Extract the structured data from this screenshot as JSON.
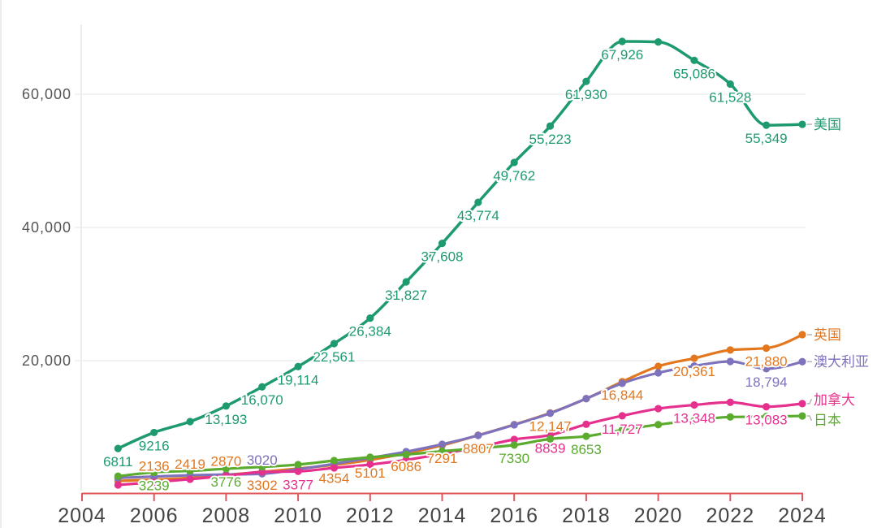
{
  "chart_data": {
    "type": "line",
    "title": "",
    "xlabel": "",
    "ylabel": "",
    "x": [
      2005,
      2006,
      2007,
      2008,
      2009,
      2010,
      2011,
      2012,
      2013,
      2014,
      2015,
      2016,
      2017,
      2018,
      2019,
      2020,
      2021,
      2022,
      2023,
      2024
    ],
    "xlim": [
      2004,
      2024
    ],
    "ylim": [
      0,
      70000
    ],
    "xticks": [
      2004,
      2006,
      2008,
      2010,
      2012,
      2014,
      2016,
      2018,
      2020,
      2022,
      2024
    ],
    "xtick_labels": [
      "2004",
      "2006",
      "2008",
      "2010",
      "2012",
      "2014",
      "2016",
      "2018",
      "2020",
      "2022",
      "2024"
    ],
    "yticks": [
      20000,
      40000,
      60000
    ],
    "ytick_labels": [
      "20,000",
      "40,000",
      "60,000"
    ],
    "grid": {
      "y": true,
      "x": false
    },
    "legend": "inline labels at line ends (right)",
    "axis_color": "#e0575b",
    "series": [
      {
        "name": "美国",
        "color": "#1e9b6e",
        "values": [
          6811,
          9216,
          10850,
          13193,
          16070,
          19114,
          22561,
          26384,
          31827,
          37608,
          43774,
          49762,
          55223,
          61930,
          67926,
          67850,
          65086,
          61528,
          55349,
          55480
        ]
      },
      {
        "name": "英国",
        "color": "#e3771e",
        "values": [
          1950,
          2136,
          2419,
          2870,
          3302,
          3800,
          4354,
          5101,
          6086,
          7291,
          8807,
          10400,
          12147,
          14300,
          16844,
          19150,
          20361,
          21600,
          21880,
          23900
        ]
      },
      {
        "name": "澳大利亚",
        "color": "#7d72bb",
        "values": [
          2400,
          2600,
          2800,
          2900,
          3020,
          3700,
          4500,
          5400,
          6340,
          7440,
          8780,
          10370,
          12100,
          14300,
          16600,
          18170,
          19200,
          19880,
          18794,
          19850
        ]
      },
      {
        "name": "加拿大",
        "color": "#e6308d",
        "values": [
          1340,
          1750,
          2200,
          2700,
          3290,
          3377,
          3900,
          4400,
          5100,
          6000,
          7000,
          8170,
          8839,
          10450,
          11727,
          12800,
          13348,
          13750,
          13083,
          13550
        ]
      },
      {
        "name": "日本",
        "color": "#5aab2e",
        "values": [
          2650,
          3239,
          3450,
          3776,
          4050,
          4400,
          5000,
          5500,
          5900,
          6400,
          6850,
          7330,
          8250,
          8653,
          9600,
          10400,
          11000,
          11550,
          11600,
          11700
        ]
      }
    ],
    "data_labels": [
      {
        "series": 0,
        "year": 2005,
        "text": "6811",
        "placement": "below"
      },
      {
        "series": 0,
        "year": 2006,
        "text": "9216",
        "placement": "below"
      },
      {
        "series": 0,
        "year": 2008,
        "text": "13,193",
        "placement": "below"
      },
      {
        "series": 0,
        "year": 2009,
        "text": "16,070",
        "placement": "below"
      },
      {
        "series": 0,
        "year": 2010,
        "text": "19,114",
        "placement": "below"
      },
      {
        "series": 0,
        "year": 2011,
        "text": "22,561",
        "placement": "below"
      },
      {
        "series": 0,
        "year": 2012,
        "text": "26,384",
        "placement": "below"
      },
      {
        "series": 0,
        "year": 2013,
        "text": "31,827",
        "placement": "below"
      },
      {
        "series": 0,
        "year": 2014,
        "text": "37,608",
        "placement": "below"
      },
      {
        "series": 0,
        "year": 2015,
        "text": "43,774",
        "placement": "below"
      },
      {
        "series": 0,
        "year": 2016,
        "text": "49,762",
        "placement": "below"
      },
      {
        "series": 0,
        "year": 2017,
        "text": "55,223",
        "placement": "below"
      },
      {
        "series": 0,
        "year": 2018,
        "text": "61,930",
        "placement": "below"
      },
      {
        "series": 0,
        "year": 2019,
        "text": "67,926",
        "placement": "below"
      },
      {
        "series": 0,
        "year": 2021,
        "text": "65,086",
        "placement": "below"
      },
      {
        "series": 0,
        "year": 2022,
        "text": "61,528",
        "placement": "below"
      },
      {
        "series": 0,
        "year": 2023,
        "text": "55,349",
        "placement": "below"
      },
      {
        "series": 1,
        "year": 2006,
        "text": "2136",
        "placement": "above"
      },
      {
        "series": 1,
        "year": 2007,
        "text": "2419",
        "placement": "above"
      },
      {
        "series": 1,
        "year": 2008,
        "text": "2870",
        "placement": "above"
      },
      {
        "series": 1,
        "year": 2009,
        "text": "3302",
        "placement": "below"
      },
      {
        "series": 1,
        "year": 2011,
        "text": "4354",
        "placement": "below"
      },
      {
        "series": 1,
        "year": 2012,
        "text": "5101",
        "placement": "below"
      },
      {
        "series": 1,
        "year": 2013,
        "text": "6086",
        "placement": "below"
      },
      {
        "series": 1,
        "year": 2014,
        "text": "7291",
        "placement": "below"
      },
      {
        "series": 1,
        "year": 2015,
        "text": "8807",
        "placement": "below"
      },
      {
        "series": 1,
        "year": 2017,
        "text": "12,147",
        "placement": "below"
      },
      {
        "series": 1,
        "year": 2019,
        "text": "16,844",
        "placement": "below"
      },
      {
        "series": 1,
        "year": 2021,
        "text": "20,361",
        "placement": "below"
      },
      {
        "series": 1,
        "year": 2023,
        "text": "21,880",
        "placement": "below"
      },
      {
        "series": 2,
        "year": 2009,
        "text": "3020",
        "placement": "above"
      },
      {
        "series": 2,
        "year": 2023,
        "text": "18,794",
        "placement": "below"
      },
      {
        "series": 3,
        "year": 2010,
        "text": "3377",
        "placement": "below"
      },
      {
        "series": 3,
        "year": 2017,
        "text": "8839",
        "placement": "below"
      },
      {
        "series": 3,
        "year": 2019,
        "text": "11,727",
        "placement": "below"
      },
      {
        "series": 3,
        "year": 2021,
        "text": "13,348",
        "placement": "below"
      },
      {
        "series": 3,
        "year": 2023,
        "text": "13,083",
        "placement": "below"
      },
      {
        "series": 4,
        "year": 2006,
        "text": "3239",
        "placement": "below"
      },
      {
        "series": 4,
        "year": 2008,
        "text": "3776",
        "placement": "below"
      },
      {
        "series": 4,
        "year": 2016,
        "text": "7330",
        "placement": "below"
      },
      {
        "series": 4,
        "year": 2018,
        "text": "8653",
        "placement": "below"
      }
    ]
  }
}
